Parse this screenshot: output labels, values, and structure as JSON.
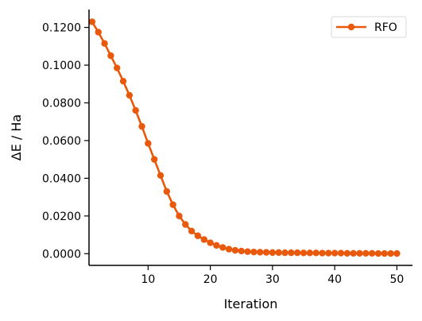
{
  "chart_data": {
    "type": "line",
    "xlabel": "Iteration",
    "ylabel": "ΔE / Ha",
    "xlim": [
      0.5,
      52.5
    ],
    "ylim": [
      -0.0062,
      0.1295
    ],
    "xticks": [
      10,
      20,
      30,
      40,
      50
    ],
    "xtick_labels": [
      "10",
      "20",
      "30",
      "40",
      "50"
    ],
    "yticks": [
      0.0,
      0.02,
      0.04,
      0.06,
      0.08,
      0.1,
      0.12
    ],
    "ytick_labels": [
      "0.0000",
      "0.0200",
      "0.0400",
      "0.0600",
      "0.0800",
      "0.1000",
      "0.1200"
    ],
    "grid": false,
    "legend_position": "top-right",
    "series": [
      {
        "name": "RFO",
        "color": "#e8590c",
        "marker": "circle",
        "x": [
          1,
          2,
          3,
          4,
          5,
          6,
          7,
          8,
          9,
          10,
          11,
          12,
          13,
          14,
          15,
          16,
          17,
          18,
          19,
          20,
          21,
          22,
          23,
          24,
          25,
          26,
          27,
          28,
          29,
          30,
          31,
          32,
          33,
          34,
          35,
          36,
          37,
          38,
          39,
          40,
          41,
          42,
          43,
          44,
          45,
          46,
          47,
          48,
          49,
          50
        ],
        "values": [
          0.123,
          0.1175,
          0.1115,
          0.105,
          0.0985,
          0.0915,
          0.084,
          0.076,
          0.0675,
          0.0585,
          0.05,
          0.0415,
          0.033,
          0.026,
          0.02,
          0.0155,
          0.012,
          0.0095,
          0.0075,
          0.0058,
          0.0044,
          0.0033,
          0.0024,
          0.0018,
          0.0014,
          0.0011,
          0.0009,
          0.0008,
          0.0007,
          0.0006,
          0.0006,
          0.0005,
          0.0005,
          0.0005,
          0.0004,
          0.0004,
          0.0004,
          0.0003,
          0.0003,
          0.0003,
          0.0003,
          0.0002,
          0.0002,
          0.0002,
          0.0002,
          0.0002,
          0.0001,
          0.0001,
          0.0001,
          0.0001
        ]
      }
    ]
  }
}
